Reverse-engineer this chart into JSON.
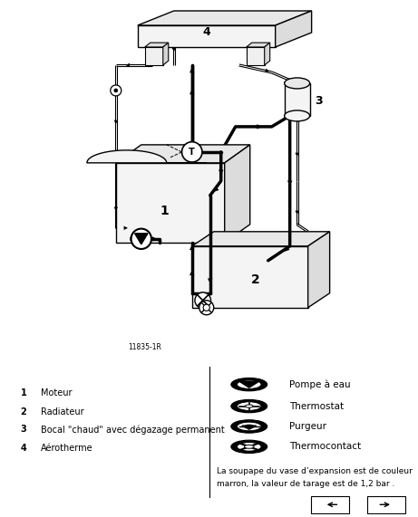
{
  "bg_color": "#ffffff",
  "fig_width": 4.61,
  "fig_height": 5.71,
  "ref_code": "11835-1R",
  "legend_items_left": [
    [
      "1",
      "Moteur"
    ],
    [
      "2",
      "Radiateur"
    ],
    [
      "3",
      "Bocal \"chaud\" avec dégazage permanent"
    ],
    [
      "4",
      "Aérotherme"
    ]
  ],
  "legend_items_right": [
    "Pompe à eau",
    "Thermostat",
    "Purgeur",
    "Thermocontact"
  ],
  "footnote": "La soupape du vase d’expansion est de couleur\nmarron, la valeur de tarage est de 1,2 bar ."
}
